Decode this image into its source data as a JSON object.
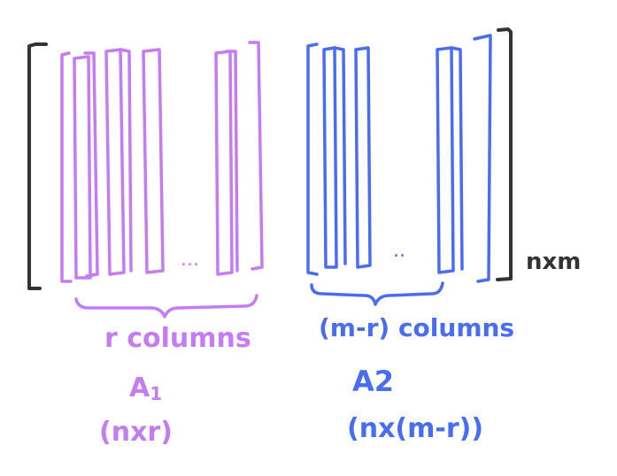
{
  "colors": {
    "left_block": "#c47cf0",
    "right_block": "#4a6df0",
    "outer_bracket": "#333333",
    "background": "#ffffff"
  },
  "matrix": {
    "size_label": "nxm"
  },
  "left_block": {
    "ellipsis": "...",
    "count_label": "r columns",
    "name": "A",
    "name_subscript": "1",
    "dims_label": "(nxr)"
  },
  "right_block": {
    "ellipsis": "..",
    "count_label": "(m-r) columns",
    "name": "A2",
    "dims_label": "(nx(m-r))"
  }
}
